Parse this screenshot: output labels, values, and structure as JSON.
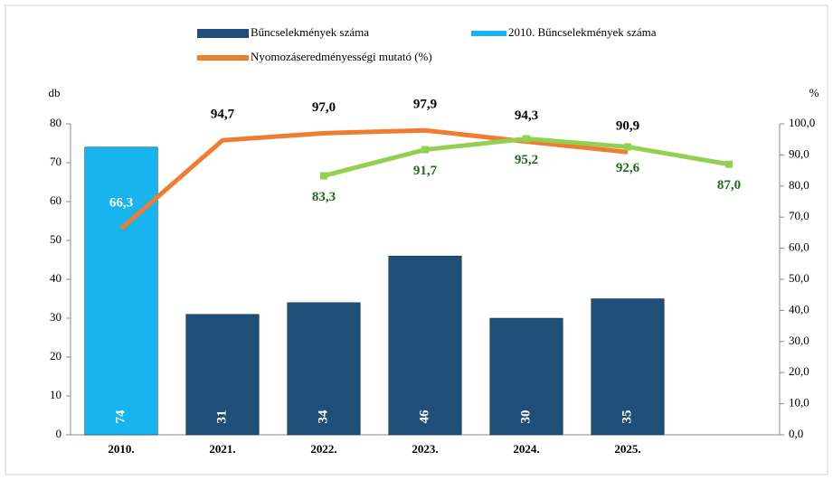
{
  "chart_data": {
    "type": "bar_line",
    "categories": [
      "2010.",
      "2021.",
      "2022.",
      "2023.",
      "2024.",
      "2025.",
      null
    ],
    "ylabel": "db",
    "y2label": "%",
    "ylim": [
      0,
      80
    ],
    "yticks": [
      0,
      10,
      20,
      30,
      40,
      50,
      60,
      70,
      80
    ],
    "y2lim": [
      0,
      100
    ],
    "y2ticks": [
      {
        "value": 0,
        "label": "0,0"
      },
      {
        "value": 10,
        "label": "10,0"
      },
      {
        "value": 20,
        "label": "20,0"
      },
      {
        "value": 30,
        "label": "30,0"
      },
      {
        "value": 40,
        "label": "40,0"
      },
      {
        "value": 50,
        "label": "50,0"
      },
      {
        "value": 60,
        "label": "60,0"
      },
      {
        "value": 70,
        "label": "70,0"
      },
      {
        "value": 80,
        "label": "80,0"
      },
      {
        "value": 90,
        "label": "90,0"
      },
      {
        "value": 100,
        "label": "100,0"
      }
    ],
    "series": [
      {
        "name": "Bűncselekmények száma",
        "kind": "bar",
        "color": "#1f4e79",
        "values": [
          null,
          31,
          34,
          46,
          30,
          35,
          null
        ]
      },
      {
        "name": "2010. Bűncselekmények száma",
        "kind": "bar",
        "color": "#17b4f0",
        "values": [
          74,
          null,
          null,
          null,
          null,
          null,
          null
        ]
      },
      {
        "name": "Nyomozáseredményességi mutató (%)",
        "kind": "line",
        "axis": "y2",
        "color": "#f07c30",
        "values": [
          66.3,
          94.7,
          97.0,
          97.9,
          94.3,
          90.9,
          null
        ],
        "value_labels": [
          "66,3",
          "94,7",
          "97,0",
          "97,9",
          "94,3",
          "90,9",
          null
        ]
      },
      {
        "kind": "line",
        "axis": "y2",
        "color": "#92d050",
        "label_color": "#1e6b1e",
        "markers": true,
        "values": [
          null,
          null,
          83.3,
          91.7,
          95.2,
          92.6,
          87.0
        ],
        "value_labels": [
          null,
          null,
          "83,3",
          "91,7",
          "95,2",
          "92,6",
          "87,0"
        ]
      }
    ]
  }
}
